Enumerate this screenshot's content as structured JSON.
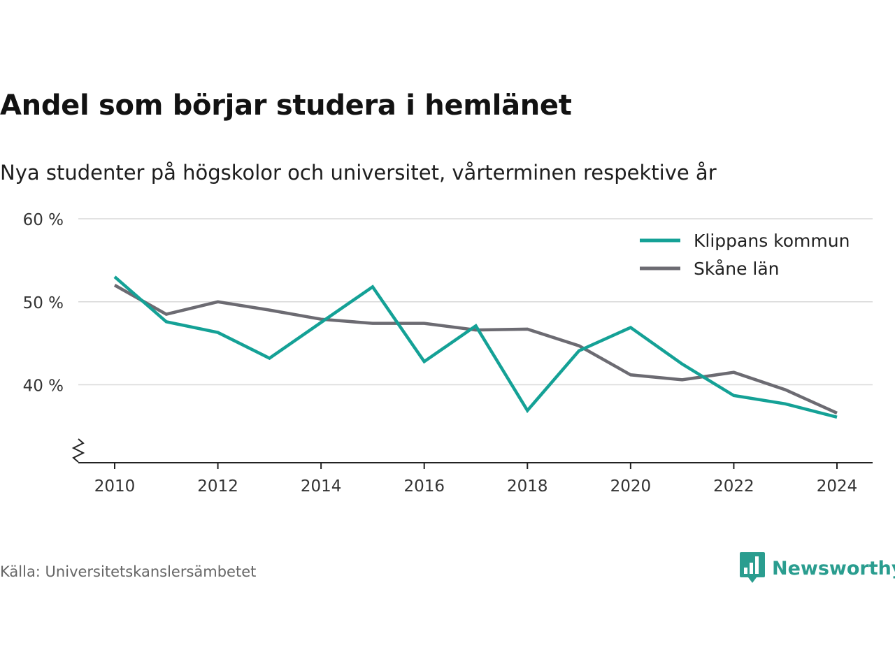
{
  "title": "Andel som börjar studera i hemlänet",
  "subtitle": "Nya studenter på högskolor och universitet, vårterminen respektive år",
  "source": "Källa: Universitetskanslersämbetet",
  "brand": "Newsworthy",
  "colors": {
    "klippan": "#14a196",
    "skane": "#6c6b72",
    "grid": "#d9d9d9",
    "axis": "#222222",
    "brand": "#2a9d8f"
  },
  "chart_data": {
    "type": "line",
    "x": [
      2010,
      2011,
      2012,
      2013,
      2014,
      2015,
      2016,
      2017,
      2018,
      2019,
      2020,
      2021,
      2022,
      2023,
      2024
    ],
    "series": [
      {
        "name": "Klippans kommun",
        "color": "#14a196",
        "values": [
          53.0,
          47.6,
          46.3,
          43.2,
          47.5,
          51.8,
          42.8,
          47.1,
          36.9,
          44.1,
          46.9,
          42.5,
          38.7,
          37.7,
          36.1
        ]
      },
      {
        "name": "Skåne län",
        "color": "#6c6b72",
        "values": [
          52.0,
          48.5,
          50.0,
          49.0,
          47.9,
          47.4,
          47.4,
          46.6,
          46.7,
          44.7,
          41.2,
          40.6,
          41.5,
          39.4,
          36.6
        ]
      }
    ],
    "yticks": [
      {
        "value": 40,
        "label": "40 %"
      },
      {
        "value": 50,
        "label": "50 %"
      },
      {
        "value": 60,
        "label": "60 %"
      }
    ],
    "xticks": [
      2010,
      2012,
      2014,
      2016,
      2018,
      2020,
      2022,
      2024
    ],
    "ylim": [
      40,
      60
    ],
    "xlim": [
      2010,
      2024
    ],
    "y_axis_break": true,
    "grid": true,
    "legend_position": "top-right"
  }
}
